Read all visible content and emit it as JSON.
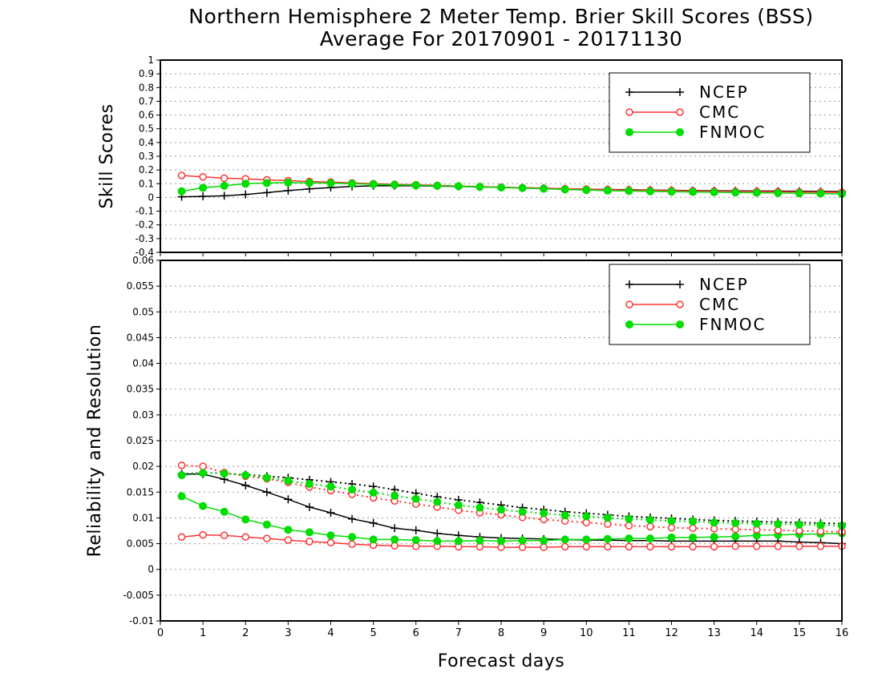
{
  "title_line1": "Northern Hemisphere 2 Meter Temp. Brier Skill Scores (BSS)",
  "title_line2": "Average For 20170901 - 20171130",
  "xlabel": "Forecast days",
  "colors": {
    "NCEP": "#000000",
    "CMC": "#ff3333",
    "FNMOC": "#00dd00"
  },
  "chart_data": [
    {
      "type": "line",
      "ylabel": "Skill Scores",
      "xlim": [
        0,
        16
      ],
      "ylim": [
        -0.4,
        1
      ],
      "x_ticks": [
        "0",
        "1",
        "2",
        "3",
        "4",
        "5",
        "6",
        "7",
        "8",
        "9",
        "10",
        "11",
        "12",
        "13",
        "14",
        "15",
        "16"
      ],
      "y_ticks": [
        "-0.4",
        "-0.3",
        "-0.2",
        "-0.1",
        "0",
        "0.1",
        "0.2",
        "0.3",
        "0.4",
        "0.5",
        "0.6",
        "0.7",
        "0.8",
        "0.9",
        "1"
      ],
      "grid": true,
      "legend_position": "top-right",
      "x": [
        0.5,
        1,
        1.5,
        2,
        2.5,
        3,
        3.5,
        4,
        4.5,
        5,
        5.5,
        6,
        6.5,
        7,
        7.5,
        8,
        8.5,
        9,
        9.5,
        10,
        10.5,
        11,
        11.5,
        12,
        12.5,
        13,
        13.5,
        14,
        14.5,
        15,
        15.5,
        16
      ],
      "series": [
        {
          "name": "NCEP",
          "marker": "plus",
          "values": [
            0.005,
            0.008,
            0.012,
            0.022,
            0.035,
            0.05,
            0.062,
            0.072,
            0.08,
            0.085,
            0.085,
            0.085,
            0.083,
            0.08,
            0.077,
            0.073,
            0.07,
            0.067,
            0.063,
            0.06,
            0.058,
            0.056,
            0.054,
            0.052,
            0.05,
            0.049,
            0.048,
            0.047,
            0.046,
            0.045,
            0.044,
            0.043
          ]
        },
        {
          "name": "CMC",
          "marker": "open-circle",
          "values": [
            0.16,
            0.15,
            0.14,
            0.135,
            0.128,
            0.122,
            0.116,
            0.112,
            0.106,
            0.1,
            0.096,
            0.092,
            0.088,
            0.083,
            0.079,
            0.075,
            0.071,
            0.067,
            0.063,
            0.06,
            0.057,
            0.054,
            0.052,
            0.05,
            0.048,
            0.046,
            0.044,
            0.043,
            0.042,
            0.04,
            0.038,
            0.037
          ]
        },
        {
          "name": "FNMOC",
          "marker": "filled-circle",
          "values": [
            0.045,
            0.07,
            0.085,
            0.1,
            0.105,
            0.108,
            0.106,
            0.104,
            0.1,
            0.096,
            0.092,
            0.088,
            0.085,
            0.082,
            0.077,
            0.072,
            0.068,
            0.063,
            0.058,
            0.054,
            0.05,
            0.047,
            0.044,
            0.042,
            0.04,
            0.038,
            0.036,
            0.034,
            0.032,
            0.03,
            0.028,
            0.026
          ]
        }
      ]
    },
    {
      "type": "line",
      "ylabel": "Reliability and Resolution",
      "xlim": [
        0,
        16
      ],
      "ylim": [
        -0.01,
        0.06
      ],
      "x_ticks": [
        "0",
        "1",
        "2",
        "3",
        "4",
        "5",
        "6",
        "7",
        "8",
        "9",
        "10",
        "11",
        "12",
        "13",
        "14",
        "15",
        "16"
      ],
      "y_ticks": [
        "-0.01",
        "-0.005",
        "0",
        "0.005",
        "0.01",
        "0.015",
        "0.02",
        "0.025",
        "0.03",
        "0.035",
        "0.04",
        "0.045",
        "0.05",
        "0.055",
        "0.06"
      ],
      "grid": true,
      "legend_position": "top-right",
      "x": [
        0.5,
        1,
        1.5,
        2,
        2.5,
        3,
        3.5,
        4,
        4.5,
        5,
        5.5,
        6,
        6.5,
        7,
        7.5,
        8,
        8.5,
        9,
        9.5,
        10,
        10.5,
        11,
        11.5,
        12,
        12.5,
        13,
        13.5,
        14,
        14.5,
        15,
        15.5,
        16
      ],
      "series": [
        {
          "name": "NCEP",
          "component": "reliability",
          "line": "solid",
          "marker": "plus",
          "values": [
            0.0185,
            0.0185,
            0.0175,
            0.0163,
            0.015,
            0.0136,
            0.0121,
            0.011,
            0.0098,
            0.009,
            0.008,
            0.0076,
            0.007,
            0.0066,
            0.0063,
            0.0061,
            0.006,
            0.0059,
            0.0058,
            0.0057,
            0.0057,
            0.0056,
            0.0056,
            0.0055,
            0.0055,
            0.0055,
            0.0055,
            0.0055,
            0.0055,
            0.0053,
            0.0052,
            0.005
          ]
        },
        {
          "name": "CMC",
          "component": "reliability",
          "line": "solid",
          "marker": "open-circle",
          "values": [
            0.0063,
            0.0067,
            0.0066,
            0.0063,
            0.006,
            0.0057,
            0.0054,
            0.0052,
            0.0049,
            0.0047,
            0.0046,
            0.0045,
            0.0045,
            0.0044,
            0.0044,
            0.0043,
            0.0043,
            0.0043,
            0.0044,
            0.0044,
            0.0044,
            0.0044,
            0.0044,
            0.0044,
            0.0044,
            0.0044,
            0.0045,
            0.0045,
            0.0045,
            0.0045,
            0.0045,
            0.0045
          ]
        },
        {
          "name": "FNMOC",
          "component": "reliability",
          "line": "solid",
          "marker": "filled-circle",
          "values": [
            0.0142,
            0.0123,
            0.0112,
            0.0097,
            0.0087,
            0.0077,
            0.0072,
            0.0066,
            0.0063,
            0.0058,
            0.0058,
            0.0057,
            0.0055,
            0.0055,
            0.0056,
            0.0055,
            0.0056,
            0.0056,
            0.0058,
            0.0058,
            0.0059,
            0.006,
            0.006,
            0.0062,
            0.0062,
            0.0063,
            0.0064,
            0.0066,
            0.0067,
            0.0068,
            0.0069,
            0.007
          ]
        },
        {
          "name": "NCEP",
          "component": "resolution",
          "line": "dotted",
          "marker": "plus",
          "values": [
            0.0185,
            0.0188,
            0.0186,
            0.0184,
            0.0181,
            0.0178,
            0.0174,
            0.017,
            0.0166,
            0.0161,
            0.0155,
            0.0148,
            0.0141,
            0.0135,
            0.013,
            0.0125,
            0.012,
            0.0116,
            0.0112,
            0.0109,
            0.0106,
            0.0103,
            0.0101,
            0.0099,
            0.0097,
            0.0095,
            0.0094,
            0.0093,
            0.0092,
            0.0091,
            0.009,
            0.0089
          ]
        },
        {
          "name": "CMC",
          "component": "resolution",
          "line": "dotted",
          "marker": "open-circle",
          "values": [
            0.0202,
            0.02,
            0.0188,
            0.0181,
            0.0176,
            0.0169,
            0.016,
            0.0153,
            0.0146,
            0.0139,
            0.0133,
            0.0127,
            0.0121,
            0.0115,
            0.011,
            0.0106,
            0.0101,
            0.0097,
            0.0094,
            0.0091,
            0.0088,
            0.0085,
            0.0083,
            0.0081,
            0.008,
            0.0079,
            0.0078,
            0.0077,
            0.0076,
            0.0075,
            0.0074,
            0.0073
          ]
        },
        {
          "name": "FNMOC",
          "component": "resolution",
          "line": "dotted",
          "marker": "filled-circle",
          "values": [
            0.0183,
            0.0187,
            0.0186,
            0.0183,
            0.0178,
            0.0172,
            0.0166,
            0.0161,
            0.0155,
            0.0149,
            0.0143,
            0.0137,
            0.0131,
            0.0125,
            0.012,
            0.0116,
            0.0112,
            0.0109,
            0.0105,
            0.0103,
            0.01,
            0.0098,
            0.0096,
            0.0094,
            0.0093,
            0.0091,
            0.009,
            0.0089,
            0.0088,
            0.0087,
            0.0086,
            0.0085
          ]
        }
      ]
    }
  ]
}
